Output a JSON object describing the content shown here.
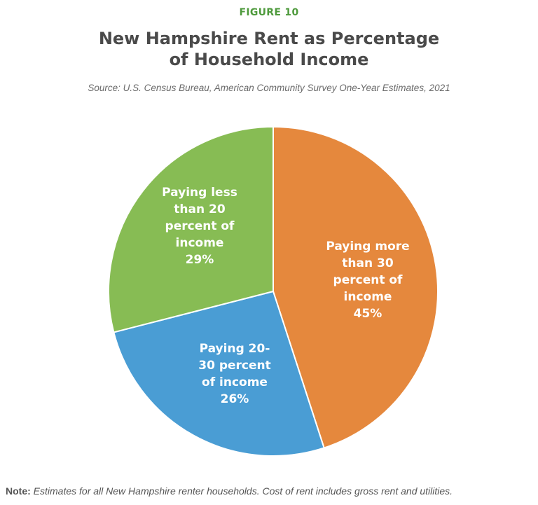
{
  "header": {
    "figure_label": "FIGURE 10",
    "title_line1": "New Hampshire Rent as Percentage",
    "title_line2": "of Household Income",
    "source": "Source: U.S. Census Bureau, American Community Survey One-Year Estimates, 2021"
  },
  "footer": {
    "note_label": "Note:",
    "note_text": " Estimates for all New Hampshire renter households. Cost of rent includes gross rent and utilities."
  },
  "colors": {
    "figure_label": "#4e9a3c",
    "more_than_30": "#e5883d",
    "between_20_30": "#4a9dd4",
    "less_than_20": "#87bc54"
  },
  "chart_data": {
    "type": "pie",
    "title": "New Hampshire Rent as Percentage of Household Income",
    "subtitle": "Source: U.S. Census Bureau, American Community Survey One-Year Estimates, 2021",
    "categories": [
      "Paying more than 30 percent of income",
      "Paying 20-30 percent of income",
      "Paying less than 20 percent of income"
    ],
    "values": [
      45,
      26,
      29
    ],
    "unit": "%",
    "colors": [
      "#e5883d",
      "#4a9dd4",
      "#87bc54"
    ],
    "start_angle": "12 o'clock, clockwise",
    "labels": [
      {
        "lines": [
          "Paying more",
          "than 30",
          "percent of",
          "income",
          "45%"
        ]
      },
      {
        "lines": [
          "Paying 20-",
          "30 percent",
          "of income",
          "26%"
        ]
      },
      {
        "lines": [
          "Paying less",
          "than 20",
          "percent of",
          "income",
          "29%"
        ]
      }
    ],
    "legend": "none (labels inside slices)"
  }
}
